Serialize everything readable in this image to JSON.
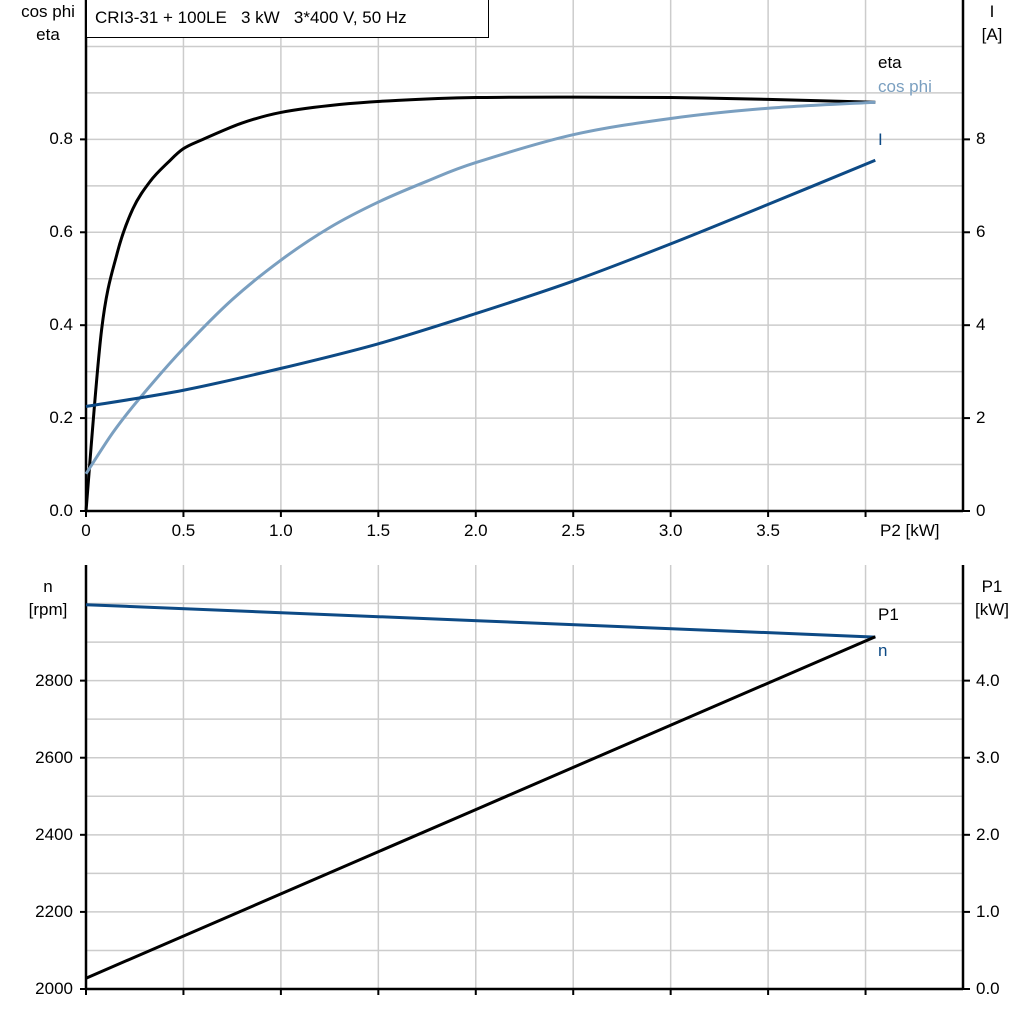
{
  "title": "CRI3-31 + 100LE   3 kW   3*400 V, 50 Hz",
  "colors": {
    "eta": "#000000",
    "cos_phi": "#7a9fc0",
    "I": "#0d4a85",
    "n": "#0d4a85",
    "P1": "#000000",
    "grid": "#cccccc"
  },
  "chart_data": [
    {
      "type": "line",
      "xlabel": "P2 [kW]",
      "ylabel_left": [
        "cos phi",
        "eta"
      ],
      "ylabel_right": [
        "I",
        "[A]"
      ],
      "xlim": [
        0,
        4.5
      ],
      "ylim_left": [
        0,
        1.1
      ],
      "ylim_right": [
        0,
        11
      ],
      "x_ticks": [
        "0",
        "0.5",
        "1.0",
        "1.5",
        "2.0",
        "2.5",
        "3.0",
        "3.5"
      ],
      "y_ticks_left": [
        "0.0",
        "0.2",
        "0.4",
        "0.6",
        "0.8"
      ],
      "y_ticks_right": [
        "0",
        "2",
        "4",
        "6",
        "8"
      ],
      "grid": true,
      "series": [
        {
          "name": "eta",
          "axis": "left",
          "points": [
            [
              0,
              0
            ],
            [
              0.08,
              0.39
            ],
            [
              0.16,
              0.555
            ],
            [
              0.24,
              0.65
            ],
            [
              0.33,
              0.71
            ],
            [
              0.42,
              0.75
            ],
            [
              0.5,
              0.78
            ],
            [
              0.6,
              0.8
            ],
            [
              0.8,
              0.835
            ],
            [
              1.0,
              0.858
            ],
            [
              1.3,
              0.875
            ],
            [
              1.6,
              0.884
            ],
            [
              2.0,
              0.89
            ],
            [
              2.5,
              0.891
            ],
            [
              3.0,
              0.89
            ],
            [
              3.5,
              0.886
            ],
            [
              4.05,
              0.88
            ]
          ]
        },
        {
          "name": "cos phi",
          "axis": "left",
          "points": [
            [
              0,
              0.08
            ],
            [
              0.14,
              0.17
            ],
            [
              0.28,
              0.245
            ],
            [
              0.5,
              0.35
            ],
            [
              0.75,
              0.455
            ],
            [
              1.0,
              0.54
            ],
            [
              1.25,
              0.61
            ],
            [
              1.5,
              0.665
            ],
            [
              1.75,
              0.71
            ],
            [
              2.0,
              0.75
            ],
            [
              2.5,
              0.81
            ],
            [
              3.0,
              0.845
            ],
            [
              3.5,
              0.867
            ],
            [
              4.05,
              0.88
            ]
          ]
        },
        {
          "name": "I",
          "axis": "right",
          "points": [
            [
              0,
              2.25
            ],
            [
              0.5,
              2.6
            ],
            [
              1.0,
              3.07
            ],
            [
              1.5,
              3.6
            ],
            [
              2.0,
              4.25
            ],
            [
              2.5,
              4.95
            ],
            [
              3.0,
              5.75
            ],
            [
              3.5,
              6.6
            ],
            [
              4.05,
              7.55
            ]
          ]
        }
      ]
    },
    {
      "type": "line",
      "ylabel_left": [
        "n",
        "[rpm]"
      ],
      "ylabel_right": [
        "P1",
        "[kW]"
      ],
      "xlim": [
        0,
        4.5
      ],
      "ylim_left": [
        2000,
        3100
      ],
      "ylim_right": [
        0,
        5.5
      ],
      "y_ticks_left": [
        "2000",
        "2200",
        "2400",
        "2600",
        "2800"
      ],
      "y_ticks_right": [
        "0.0",
        "1.0",
        "2.0",
        "3.0",
        "4.0"
      ],
      "grid": true,
      "series": [
        {
          "name": "n",
          "axis": "left",
          "points": [
            [
              0,
              2997
            ],
            [
              4.05,
              2913
            ]
          ]
        },
        {
          "name": "P1",
          "axis": "right",
          "points": [
            [
              0,
              0.14
            ],
            [
              4.05,
              4.57
            ]
          ]
        }
      ]
    }
  ]
}
